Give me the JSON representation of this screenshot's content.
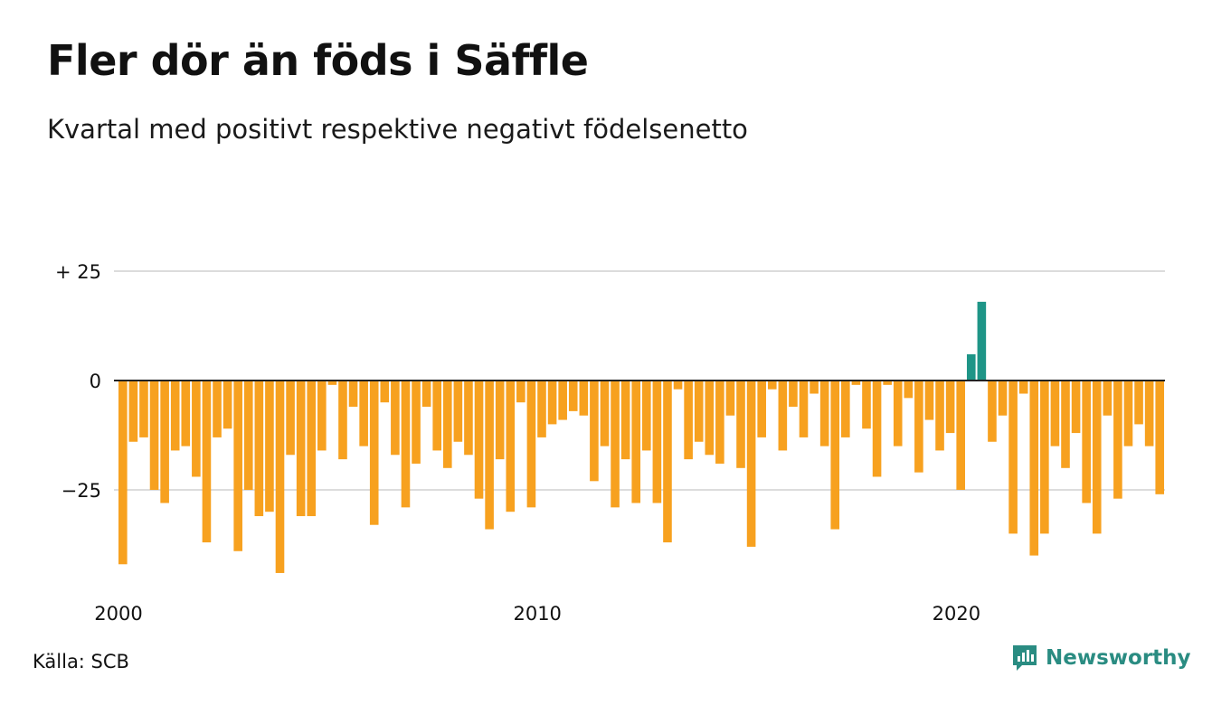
{
  "title": "Fler dör än föds i Säffle",
  "subtitle": "Kvartal med positivt respektive negativt födelsenetto",
  "source": "Källa: SCB",
  "brand": "Newsworthy",
  "colors": {
    "negative": "#f7a11f",
    "positive": "#1e9587",
    "grid": "#dcdcdc",
    "zero": "#222222",
    "brand": "#2a8c82"
  },
  "chart_data": {
    "type": "bar",
    "title": "Fler dör än föds i Säffle",
    "subtitle": "Kvartal med positivt respektive negativt födelsenetto",
    "xlabel": "",
    "ylabel": "",
    "x_start": "2000 Q1",
    "frequency": "quarter",
    "x_ticks": [
      "2000",
      "2010",
      "2020"
    ],
    "y_ticks": [
      {
        "value": 25,
        "label": "+ 25"
      },
      {
        "value": 0,
        "label": "0"
      },
      {
        "value": -25,
        "label": "−25"
      }
    ],
    "ylim": [
      -45,
      25
    ],
    "grid": true,
    "values": [
      -42,
      -14,
      -13,
      -25,
      -28,
      -16,
      -15,
      -22,
      -37,
      -13,
      -11,
      -39,
      -25,
      -31,
      -30,
      -44,
      -17,
      -31,
      -31,
      -16,
      -1,
      -18,
      -6,
      -15,
      -33,
      -5,
      -17,
      -29,
      -19,
      -6,
      -16,
      -20,
      -14,
      -17,
      -27,
      -34,
      -18,
      -30,
      -5,
      -29,
      -13,
      -10,
      -9,
      -7,
      -8,
      -23,
      -15,
      -29,
      -18,
      -28,
      -16,
      -28,
      -37,
      -2,
      -18,
      -14,
      -17,
      -19,
      -8,
      -20,
      -38,
      -13,
      -2,
      -16,
      -6,
      -13,
      -3,
      -15,
      -34,
      -13,
      -1,
      -11,
      -22,
      -1,
      -15,
      -4,
      -21,
      -9,
      -16,
      -12,
      -25,
      6,
      18,
      -14,
      -8,
      -35,
      -3,
      -40,
      -35,
      -15,
      -20,
      -12,
      -28,
      -35,
      -8,
      -27,
      -15,
      -10,
      -15,
      -26
    ]
  }
}
